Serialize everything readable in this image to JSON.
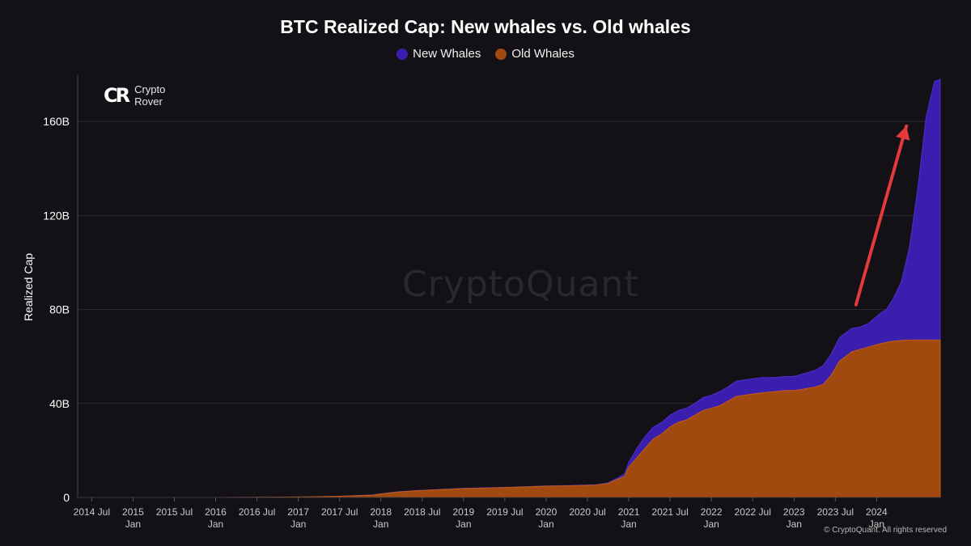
{
  "chart_data": {
    "type": "area",
    "title": "BTC Realized Cap: New whales vs. Old whales",
    "ylabel": "Realized Cap",
    "ylim": [
      0,
      180
    ],
    "y_ticks": [
      {
        "value": 0,
        "label": "0"
      },
      {
        "value": 40,
        "label": "40B"
      },
      {
        "value": 80,
        "label": "80B"
      },
      {
        "value": 120,
        "label": "120B"
      },
      {
        "value": 160,
        "label": "160B"
      }
    ],
    "xlim": [
      2014.33,
      2024.77
    ],
    "x_ticks": [
      {
        "value": 2014.5,
        "label": "2014 Jul",
        "sub": ""
      },
      {
        "value": 2015.0,
        "label": "2015",
        "sub": "Jan"
      },
      {
        "value": 2015.5,
        "label": "2015 Jul",
        "sub": ""
      },
      {
        "value": 2016.0,
        "label": "2016",
        "sub": "Jan"
      },
      {
        "value": 2016.5,
        "label": "2016 Jul",
        "sub": ""
      },
      {
        "value": 2017.0,
        "label": "2017",
        "sub": "Jan"
      },
      {
        "value": 2017.5,
        "label": "2017 Jul",
        "sub": ""
      },
      {
        "value": 2018.0,
        "label": "2018",
        "sub": "Jan"
      },
      {
        "value": 2018.5,
        "label": "2018 Jul",
        "sub": ""
      },
      {
        "value": 2019.0,
        "label": "2019",
        "sub": "Jan"
      },
      {
        "value": 2019.5,
        "label": "2019 Jul",
        "sub": ""
      },
      {
        "value": 2020.0,
        "label": "2020",
        "sub": "Jan"
      },
      {
        "value": 2020.5,
        "label": "2020 Jul",
        "sub": ""
      },
      {
        "value": 2021.0,
        "label": "2021",
        "sub": "Jan"
      },
      {
        "value": 2021.5,
        "label": "2021 Jul",
        "sub": ""
      },
      {
        "value": 2022.0,
        "label": "2022",
        "sub": "Jan"
      },
      {
        "value": 2022.5,
        "label": "2022 Jul",
        "sub": ""
      },
      {
        "value": 2023.0,
        "label": "2023",
        "sub": "Jan"
      },
      {
        "value": 2023.5,
        "label": "2023 Jul",
        "sub": ""
      },
      {
        "value": 2024.0,
        "label": "2024",
        "sub": "Jan"
      }
    ],
    "grid": true,
    "stacked": true,
    "legend_position": "top-center",
    "x": [
      2014.33,
      2015.0,
      2016.0,
      2017.0,
      2017.5,
      2017.9,
      2018.0,
      2018.2,
      2018.4,
      2018.7,
      2019.0,
      2019.5,
      2020.0,
      2020.3,
      2020.6,
      2020.75,
      2020.85,
      2020.95,
      2021.0,
      2021.05,
      2021.1,
      2021.2,
      2021.3,
      2021.4,
      2021.5,
      2021.6,
      2021.7,
      2021.8,
      2021.9,
      2022.0,
      2022.1,
      2022.2,
      2022.3,
      2022.4,
      2022.5,
      2022.6,
      2022.75,
      2022.9,
      2023.0,
      2023.1,
      2023.25,
      2023.35,
      2023.45,
      2023.55,
      2023.7,
      2023.8,
      2023.9,
      2024.0,
      2024.05,
      2024.12,
      2024.2,
      2024.3,
      2024.4,
      2024.5,
      2024.6,
      2024.7,
      2024.77
    ],
    "series": [
      {
        "name": "Old Whales",
        "color": "#a14a10",
        "values": [
          0,
          0,
          0,
          0.2,
          0.5,
          1.0,
          1.5,
          2.3,
          2.8,
          3.3,
          3.8,
          4.2,
          4.8,
          5.0,
          5.3,
          6.0,
          7.5,
          9.0,
          13,
          15,
          17,
          21,
          25,
          27,
          30,
          32,
          33,
          35,
          37,
          38,
          39,
          41,
          43,
          43.5,
          44,
          44.5,
          45,
          45.5,
          45.5,
          46,
          47,
          48,
          52,
          58,
          62,
          63,
          64,
          65,
          65.5,
          66,
          66.5,
          66.8,
          67,
          67,
          67,
          67,
          67
        ]
      },
      {
        "name": "New Whales",
        "color": "#3a1fae",
        "values": [
          0,
          0,
          0,
          0,
          0,
          0.1,
          0.1,
          0.1,
          0.1,
          0.1,
          0.1,
          0.1,
          0.1,
          0.1,
          0.1,
          0.2,
          0.5,
          1.0,
          2,
          3,
          4,
          5,
          5,
          5,
          5,
          5,
          5,
          5,
          5.5,
          5.5,
          6,
          6,
          6.5,
          6.5,
          6.5,
          6.5,
          6,
          6,
          6,
          6.5,
          7,
          8,
          9,
          10,
          10,
          9.5,
          10,
          12,
          13,
          14,
          18,
          25,
          40,
          65,
          95,
          110,
          111
        ]
      }
    ],
    "annotations": [
      {
        "type": "arrow",
        "color": "#e43a3a",
        "from": [
          2023.75,
          82
        ],
        "to": [
          2024.36,
          158
        ]
      }
    ]
  },
  "legend": {
    "items": [
      {
        "label": "New Whales",
        "color": "#3a1fae"
      },
      {
        "label": "Old Whales",
        "color": "#a14a10"
      }
    ]
  },
  "branding": {
    "logo_text_1": "Crypto",
    "logo_text_2": "Rover",
    "logo_mark": "CR",
    "watermark": "CryptoQuant",
    "copyright": "© CryptoQuant. All rights reserved"
  }
}
